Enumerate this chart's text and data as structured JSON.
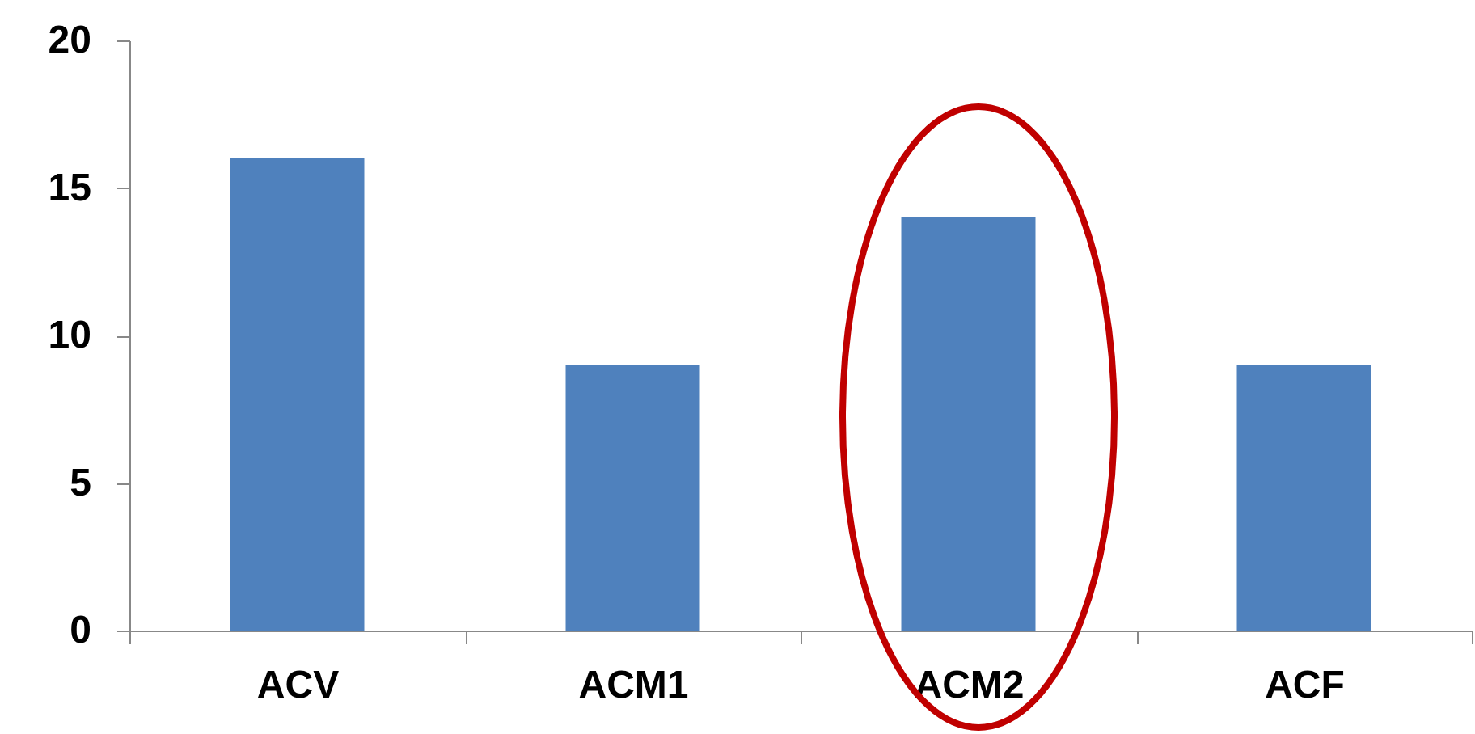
{
  "chart_data": {
    "type": "bar",
    "categories": [
      "ACV",
      "ACM1",
      "ACM2",
      "ACF"
    ],
    "values": [
      16,
      9,
      14,
      9
    ],
    "color": "#4f81bd",
    "ylim": [
      0,
      20
    ],
    "yticks": [
      0,
      5,
      10,
      15,
      20
    ],
    "grid": false
  }
}
